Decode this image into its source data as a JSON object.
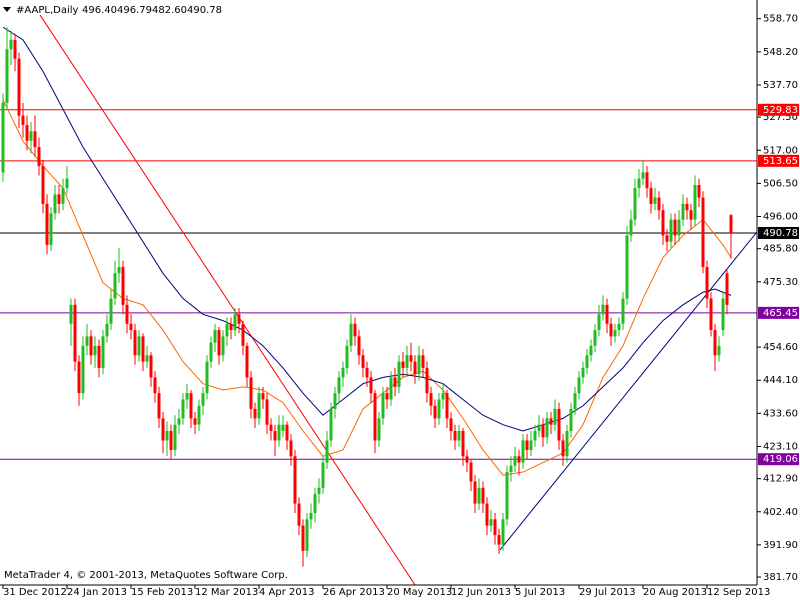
{
  "chart_data": {
    "type": "candlestick",
    "title": "#AAPL,Daily",
    "last_bar_labels": [
      "496.40",
      "496.79",
      "482.60",
      "490.78"
    ],
    "footer": "MetaTrader 4, © 2001-2013, MetaQuotes Software Corp.",
    "up_color": "#22bb22",
    "down_color": "#ff0000",
    "ylim": [
      379.5,
      564.0
    ],
    "yticks": [
      {
        "value": 558.7,
        "label": "558.70"
      },
      {
        "value": 548.2,
        "label": "548.20"
      },
      {
        "value": 537.7,
        "label": "537.70"
      },
      {
        "value": 527.5,
        "label": "527.50"
      },
      {
        "value": 517,
        "label": "517.00"
      },
      {
        "value": 506.5,
        "label": "506.50"
      },
      {
        "value": 496,
        "label": "496.00"
      },
      {
        "value": 485.8,
        "label": "485.80"
      },
      {
        "value": 475.3,
        "label": "475.30"
      },
      {
        "value": 454.6,
        "label": "454.60"
      },
      {
        "value": 444.1,
        "label": "444.10"
      },
      {
        "value": 433.6,
        "label": "433.60"
      },
      {
        "value": 423.1,
        "label": "423.10"
      },
      {
        "value": 412.9,
        "label": "412.90"
      },
      {
        "value": 402.4,
        "label": "402.40"
      },
      {
        "value": 391.9,
        "label": "391.90"
      },
      {
        "value": 381.7,
        "label": "381.70"
      }
    ],
    "xticks": [
      {
        "value": 0,
        "label": "31 Dec 2012"
      },
      {
        "value": 16,
        "label": "24 Jan 2013"
      },
      {
        "value": 32,
        "label": "15 Feb 2013"
      },
      {
        "value": 48,
        "label": "12 Mar 2013"
      },
      {
        "value": 64,
        "label": "4 Apr 2013"
      },
      {
        "value": 80,
        "label": "26 Apr 2013"
      },
      {
        "value": 96,
        "label": "20 May 2013"
      },
      {
        "value": 112,
        "label": "12 Jun 2013"
      },
      {
        "value": 128,
        "label": "5 Jul 2013"
      },
      {
        "value": 144,
        "label": "29 Jul 2013"
      },
      {
        "value": 160,
        "label": "20 Aug 2013"
      },
      {
        "value": 176,
        "label": "12 Sep 2013"
      }
    ],
    "levels": [
      {
        "value": 529.83,
        "color": "#ff0000"
      },
      {
        "value": 513.65,
        "color": "#ff0000"
      },
      {
        "value": 490.78,
        "color": "#000000"
      },
      {
        "value": 465.45,
        "color": "#8000a0"
      },
      {
        "value": 419.06,
        "color": "#8000a0"
      }
    ],
    "trendlines": [
      {
        "color": "#ff0000",
        "x": [
          9.25,
          103
        ],
        "values": [
          559.9,
          379.2
        ]
      },
      {
        "color": "#000080",
        "x": [
          124.25,
          199
        ],
        "values": [
          390.3,
          507.6
        ]
      }
    ],
    "series": [
      {
        "color": "#ff6600",
        "x": [
          0,
          5,
          10,
          15,
          20,
          25,
          30,
          35,
          40,
          45,
          50,
          55,
          60,
          65,
          70,
          75,
          80,
          85,
          90,
          95,
          100,
          105,
          110,
          115,
          120,
          125,
          130,
          135,
          140,
          145,
          150,
          155,
          160,
          165,
          170,
          175,
          180,
          182
        ],
        "values": [
          533,
          520,
          512,
          505,
          490,
          475,
          470,
          468,
          460,
          450,
          443,
          441,
          442,
          441,
          437,
          428,
          420,
          422,
          435,
          440,
          445,
          447,
          441,
          432,
          422,
          414,
          415,
          418,
          421,
          430,
          445,
          455,
          470,
          483,
          490,
          495,
          487,
          483
        ]
      },
      {
        "color": "#000080",
        "x": [
          0,
          5,
          10,
          15,
          20,
          25,
          30,
          35,
          40,
          45,
          50,
          55,
          60,
          65,
          70,
          75,
          80,
          85,
          90,
          95,
          100,
          105,
          110,
          115,
          120,
          125,
          130,
          135,
          140,
          145,
          150,
          155,
          160,
          165,
          170,
          175,
          178,
          182
        ],
        "values": [
          556,
          552,
          542,
          530,
          518,
          508,
          498,
          488,
          478,
          470,
          465,
          463,
          460,
          455,
          448,
          440,
          433,
          438,
          443,
          445,
          446,
          445,
          443,
          438,
          433,
          430,
          428,
          430,
          432,
          436,
          442,
          448,
          456,
          463,
          468,
          472,
          473,
          471
        ]
      }
    ],
    "ohlc": [
      [
        510,
        535,
        507,
        532
      ],
      [
        532,
        556,
        530,
        549
      ],
      [
        549,
        555,
        544,
        552
      ],
      [
        552,
        554,
        542,
        546
      ],
      [
        546,
        548,
        524,
        528
      ],
      [
        528,
        532,
        521,
        525
      ],
      [
        525,
        528,
        517,
        520
      ],
      [
        520,
        526,
        516,
        523
      ],
      [
        523,
        528,
        515,
        518
      ],
      [
        518,
        521,
        509,
        512
      ],
      [
        512,
        514,
        497,
        500
      ],
      [
        500,
        503,
        484,
        487
      ],
      [
        487,
        499,
        485,
        497
      ],
      [
        497,
        506,
        495,
        503
      ],
      [
        503,
        506,
        497,
        500
      ],
      [
        500,
        508,
        498,
        505
      ],
      [
        505,
        512,
        503,
        508
      ],
      [
        462,
        470,
        455,
        468
      ],
      [
        468,
        470,
        447,
        450
      ],
      [
        450,
        452,
        436,
        440
      ],
      [
        440,
        458,
        438,
        455
      ],
      [
        455,
        462,
        452,
        458
      ],
      [
        458,
        460,
        449,
        452
      ],
      [
        452,
        458,
        448,
        455
      ],
      [
        455,
        457,
        445,
        448
      ],
      [
        448,
        460,
        446,
        458
      ],
      [
        458,
        465,
        456,
        462
      ],
      [
        462,
        473,
        460,
        470
      ],
      [
        470,
        482,
        468,
        478
      ],
      [
        478,
        486,
        475,
        480
      ],
      [
        480,
        482,
        465,
        468
      ],
      [
        468,
        471,
        459,
        462
      ],
      [
        462,
        465,
        457,
        460
      ],
      [
        460,
        462,
        449,
        452
      ],
      [
        452,
        460,
        450,
        458
      ],
      [
        458,
        459,
        447,
        450
      ],
      [
        450,
        455,
        448,
        452
      ],
      [
        452,
        453,
        442,
        445
      ],
      [
        445,
        447,
        437,
        440
      ],
      [
        440,
        442,
        429,
        432
      ],
      [
        432,
        434,
        421,
        425
      ],
      [
        425,
        431,
        420,
        428
      ],
      [
        428,
        430,
        419,
        422
      ],
      [
        422,
        433,
        420,
        430
      ],
      [
        430,
        435,
        427,
        432
      ],
      [
        432,
        440,
        430,
        438
      ],
      [
        438,
        443,
        435,
        440
      ],
      [
        440,
        441,
        429,
        432
      ],
      [
        432,
        434,
        427,
        430
      ],
      [
        430,
        438,
        428,
        436
      ],
      [
        436,
        442,
        433,
        440
      ],
      [
        440,
        452,
        438,
        450
      ],
      [
        450,
        458,
        448,
        456
      ],
      [
        456,
        462,
        453,
        460
      ],
      [
        460,
        461,
        449,
        452
      ],
      [
        452,
        460,
        450,
        458
      ],
      [
        458,
        464,
        455,
        462
      ],
      [
        462,
        464,
        457,
        460
      ],
      [
        460,
        467,
        458,
        465
      ],
      [
        465,
        467,
        459,
        462
      ],
      [
        462,
        463,
        452,
        455
      ],
      [
        455,
        456,
        442,
        445
      ],
      [
        445,
        447,
        432,
        435
      ],
      [
        435,
        437,
        429,
        432
      ],
      [
        432,
        442,
        430,
        440
      ],
      [
        440,
        442,
        435,
        438
      ],
      [
        438,
        440,
        427,
        430
      ],
      [
        430,
        432,
        425,
        428
      ],
      [
        428,
        430,
        420,
        425
      ],
      [
        425,
        433,
        423,
        430
      ],
      [
        428,
        433,
        426,
        430
      ],
      [
        430,
        431,
        422,
        425
      ],
      [
        425,
        427,
        417,
        420
      ],
      [
        420,
        422,
        402,
        405
      ],
      [
        405,
        407,
        395,
        398
      ],
      [
        398,
        400,
        385,
        390
      ],
      [
        390,
        402,
        388,
        400
      ],
      [
        400,
        405,
        397,
        402
      ],
      [
        402,
        410,
        399,
        408
      ],
      [
        408,
        413,
        405,
        410
      ],
      [
        410,
        420,
        408,
        418
      ],
      [
        418,
        428,
        416,
        425
      ],
      [
        425,
        437,
        423,
        435
      ],
      [
        435,
        442,
        432,
        440
      ],
      [
        440,
        447,
        437,
        445
      ],
      [
        445,
        450,
        442,
        448
      ],
      [
        448,
        457,
        446,
        455
      ],
      [
        455,
        465,
        453,
        462
      ],
      [
        462,
        464,
        455,
        458
      ],
      [
        458,
        460,
        449,
        452
      ],
      [
        452,
        454,
        445,
        448
      ],
      [
        448,
        450,
        442,
        445
      ],
      [
        445,
        447,
        437,
        440
      ],
      [
        440,
        441,
        421,
        425
      ],
      [
        425,
        434,
        423,
        432
      ],
      [
        432,
        442,
        430,
        440
      ],
      [
        440,
        442,
        435,
        438
      ],
      [
        438,
        447,
        436,
        445
      ],
      [
        445,
        448,
        439,
        442
      ],
      [
        442,
        452,
        440,
        450
      ],
      [
        450,
        453,
        445,
        448
      ],
      [
        448,
        455,
        446,
        452
      ],
      [
        452,
        456,
        447,
        450
      ],
      [
        450,
        452,
        443,
        446
      ],
      [
        446,
        455,
        444,
        452
      ],
      [
        452,
        454,
        445,
        448
      ],
      [
        448,
        450,
        437,
        440
      ],
      [
        440,
        442,
        433,
        436
      ],
      [
        436,
        438,
        429,
        432
      ],
      [
        432,
        440,
        430,
        438
      ],
      [
        438,
        443,
        435,
        440
      ],
      [
        440,
        441,
        429,
        432
      ],
      [
        432,
        434,
        425,
        428
      ],
      [
        428,
        430,
        422,
        425
      ],
      [
        425,
        430,
        423,
        428
      ],
      [
        428,
        429,
        417,
        420
      ],
      [
        420,
        422,
        415,
        418
      ],
      [
        418,
        419,
        409,
        412
      ],
      [
        412,
        414,
        402,
        405
      ],
      [
        405,
        413,
        403,
        410
      ],
      [
        410,
        412,
        402,
        405
      ],
      [
        405,
        407,
        395,
        398
      ],
      [
        398,
        403,
        396,
        400
      ],
      [
        400,
        402,
        392,
        395
      ],
      [
        395,
        397,
        389,
        392
      ],
      [
        392,
        402,
        390,
        400
      ],
      [
        400,
        417,
        398,
        415
      ],
      [
        415,
        420,
        412,
        417
      ],
      [
        417,
        423,
        415,
        420
      ],
      [
        420,
        422,
        414,
        418
      ],
      [
        418,
        427,
        416,
        425
      ],
      [
        425,
        427,
        419,
        422
      ],
      [
        422,
        428,
        420,
        425
      ],
      [
        425,
        430,
        423,
        428
      ],
      [
        428,
        433,
        426,
        430
      ],
      [
        430,
        432,
        423,
        426
      ],
      [
        426,
        434,
        424,
        432
      ],
      [
        432,
        434,
        427,
        430
      ],
      [
        430,
        438,
        428,
        435
      ],
      [
        435,
        437,
        422,
        425
      ],
      [
        425,
        427,
        417,
        420
      ],
      [
        420,
        430,
        418,
        428
      ],
      [
        428,
        437,
        426,
        435
      ],
      [
        435,
        442,
        433,
        440
      ],
      [
        440,
        447,
        438,
        445
      ],
      [
        445,
        450,
        443,
        448
      ],
      [
        448,
        454,
        446,
        452
      ],
      [
        452,
        457,
        450,
        455
      ],
      [
        455,
        462,
        453,
        460
      ],
      [
        460,
        468,
        458,
        465
      ],
      [
        465,
        471,
        463,
        468
      ],
      [
        468,
        470,
        459,
        462
      ],
      [
        462,
        464,
        455,
        458
      ],
      [
        458,
        462,
        456,
        460
      ],
      [
        460,
        464,
        458,
        462
      ],
      [
        462,
        472,
        460,
        470
      ],
      [
        470,
        493,
        468,
        490
      ],
      [
        490,
        498,
        488,
        495
      ],
      [
        495,
        508,
        493,
        505
      ],
      [
        505,
        511,
        502,
        508
      ],
      [
        508,
        514,
        506,
        510
      ],
      [
        510,
        512,
        502,
        505
      ],
      [
        505,
        507,
        497,
        500
      ],
      [
        500,
        505,
        498,
        502
      ],
      [
        502,
        504,
        495,
        498
      ],
      [
        498,
        500,
        487,
        490
      ],
      [
        490,
        492,
        485,
        488
      ],
      [
        488,
        497,
        486,
        495
      ],
      [
        495,
        497,
        487,
        490
      ],
      [
        490,
        498,
        488,
        495
      ],
      [
        495,
        503,
        493,
        500
      ],
      [
        500,
        502,
        495,
        498
      ],
      [
        498,
        500,
        492,
        495
      ],
      [
        495,
        509,
        493,
        506
      ],
      [
        506,
        508,
        499,
        502
      ],
      [
        502,
        504,
        478,
        480
      ],
      [
        480,
        482,
        467,
        470
      ],
      [
        470,
        472,
        458,
        460
      ],
      [
        460,
        462,
        447,
        452
      ],
      [
        452,
        458,
        450,
        455
      ],
      [
        460,
        472,
        458,
        470
      ],
      [
        478,
        479,
        465,
        468
      ],
      [
        496.4,
        496.79,
        482.6,
        490.78
      ]
    ]
  }
}
